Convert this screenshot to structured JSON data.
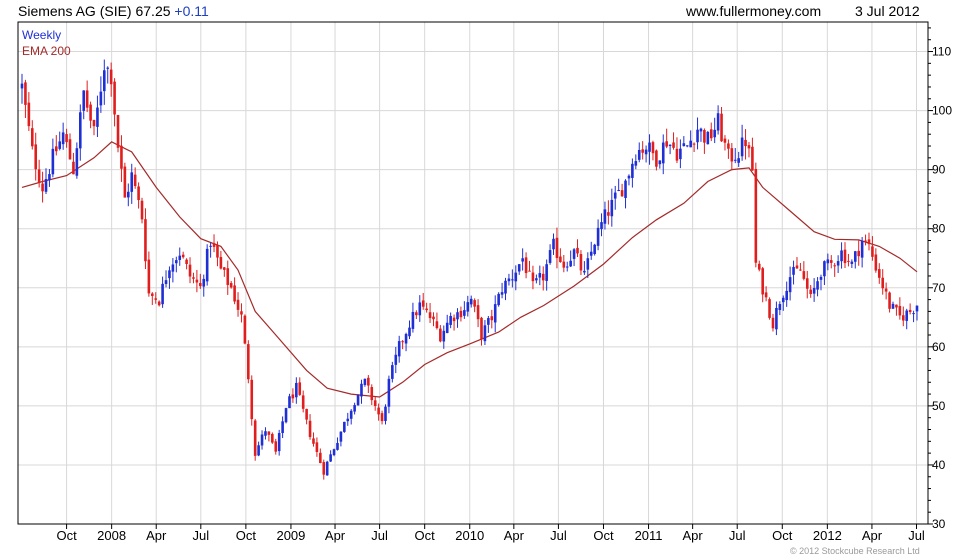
{
  "header": {
    "security": "Siemens AG (SIE)",
    "price": "67.25",
    "change": "+0.11",
    "website": "www.fullermoney.com",
    "date": "3 Jul 2012"
  },
  "legend": {
    "period": "Weekly",
    "average": "EMA 200"
  },
  "copyright": "© 2012 Stockcube Research Ltd",
  "colors": {
    "up": "#1f2fd6",
    "down": "#e01e1e",
    "ema": "#a52a2a",
    "grid": "#d8d8d8",
    "frame": "#000000"
  },
  "chart_data": {
    "type": "candlestick",
    "period": "weekly",
    "ylim": [
      30,
      115
    ],
    "y_ticks": [
      30,
      40,
      50,
      60,
      70,
      80,
      90,
      100,
      110
    ],
    "x_ticks": [
      {
        "label": "Oct",
        "date": "2007-10-01"
      },
      {
        "label": "2008",
        "date": "2008-01-01"
      },
      {
        "label": "Apr",
        "date": "2008-04-01"
      },
      {
        "label": "Jul",
        "date": "2008-07-01"
      },
      {
        "label": "Oct",
        "date": "2008-10-01"
      },
      {
        "label": "2009",
        "date": "2009-01-01"
      },
      {
        "label": "Apr",
        "date": "2009-04-01"
      },
      {
        "label": "Jul",
        "date": "2009-07-01"
      },
      {
        "label": "Oct",
        "date": "2009-10-01"
      },
      {
        "label": "2010",
        "date": "2010-01-01"
      },
      {
        "label": "Apr",
        "date": "2010-04-01"
      },
      {
        "label": "Jul",
        "date": "2010-07-01"
      },
      {
        "label": "Oct",
        "date": "2010-10-01"
      },
      {
        "label": "2011",
        "date": "2011-01-01"
      },
      {
        "label": "Apr",
        "date": "2011-04-01"
      },
      {
        "label": "Jul",
        "date": "2011-07-01"
      },
      {
        "label": "Oct",
        "date": "2011-10-01"
      },
      {
        "label": "2012",
        "date": "2012-01-01"
      },
      {
        "label": "Apr",
        "date": "2012-04-01"
      },
      {
        "label": "Jul",
        "date": "2012-07-01"
      }
    ],
    "price_anchors": [
      [
        "2007-07-02",
        104
      ],
      [
        "2007-07-23",
        93
      ],
      [
        "2007-08-13",
        87
      ],
      [
        "2007-09-03",
        92
      ],
      [
        "2007-09-24",
        96
      ],
      [
        "2007-10-15",
        90
      ],
      [
        "2007-11-05",
        103
      ],
      [
        "2007-11-26",
        96
      ],
      [
        "2007-12-17",
        108
      ],
      [
        "2007-12-31",
        106
      ],
      [
        "2008-01-14",
        94
      ],
      [
        "2008-01-28",
        85
      ],
      [
        "2008-02-11",
        89
      ],
      [
        "2008-03-03",
        82
      ],
      [
        "2008-03-17",
        69
      ],
      [
        "2008-04-07",
        68
      ],
      [
        "2008-04-28",
        74
      ],
      [
        "2008-05-19",
        76
      ],
      [
        "2008-06-09",
        72
      ],
      [
        "2008-06-30",
        70
      ],
      [
        "2008-07-21",
        78
      ],
      [
        "2008-08-11",
        73
      ],
      [
        "2008-09-01",
        70
      ],
      [
        "2008-09-22",
        65
      ],
      [
        "2008-10-06",
        55
      ],
      [
        "2008-10-20",
        42
      ],
      [
        "2008-11-10",
        46
      ],
      [
        "2008-12-01",
        42
      ],
      [
        "2008-12-22",
        50
      ],
      [
        "2009-01-12",
        53
      ],
      [
        "2009-02-02",
        47
      ],
      [
        "2009-02-23",
        42
      ],
      [
        "2009-03-09",
        39
      ],
      [
        "2009-03-30",
        43
      ],
      [
        "2009-04-20",
        47
      ],
      [
        "2009-05-11",
        51
      ],
      [
        "2009-06-01",
        54
      ],
      [
        "2009-06-22",
        50
      ],
      [
        "2009-07-06",
        47
      ],
      [
        "2009-07-20",
        54
      ],
      [
        "2009-08-10",
        60
      ],
      [
        "2009-08-31",
        64
      ],
      [
        "2009-09-21",
        67
      ],
      [
        "2009-10-12",
        65
      ],
      [
        "2009-11-02",
        62
      ],
      [
        "2009-11-23",
        65
      ],
      [
        "2009-12-14",
        66
      ],
      [
        "2010-01-04",
        68
      ],
      [
        "2010-01-25",
        62
      ],
      [
        "2010-02-15",
        65
      ],
      [
        "2010-03-08",
        70
      ],
      [
        "2010-03-29",
        72
      ],
      [
        "2010-04-19",
        75
      ],
      [
        "2010-05-10",
        70
      ],
      [
        "2010-05-31",
        72
      ],
      [
        "2010-06-21",
        77
      ],
      [
        "2010-07-12",
        74
      ],
      [
        "2010-08-02",
        76
      ],
      [
        "2010-08-23",
        72
      ],
      [
        "2010-09-13",
        78
      ],
      [
        "2010-10-04",
        82
      ],
      [
        "2010-10-25",
        85
      ],
      [
        "2010-11-15",
        88
      ],
      [
        "2010-12-06",
        93
      ],
      [
        "2010-12-27",
        94
      ],
      [
        "2011-01-17",
        92
      ],
      [
        "2011-02-07",
        95
      ],
      [
        "2011-02-28",
        93
      ],
      [
        "2011-03-21",
        94
      ],
      [
        "2011-04-11",
        97
      ],
      [
        "2011-05-02",
        95
      ],
      [
        "2011-05-23",
        98
      ],
      [
        "2011-06-13",
        92
      ],
      [
        "2011-07-04",
        93
      ],
      [
        "2011-07-18",
        95
      ],
      [
        "2011-08-01",
        90
      ],
      [
        "2011-08-08",
        74
      ],
      [
        "2011-08-22",
        70
      ],
      [
        "2011-09-12",
        64
      ],
      [
        "2011-09-26",
        68
      ],
      [
        "2011-10-17",
        72
      ],
      [
        "2011-11-07",
        73
      ],
      [
        "2011-11-28",
        68
      ],
      [
        "2011-12-19",
        73
      ],
      [
        "2012-01-09",
        74
      ],
      [
        "2012-01-30",
        76
      ],
      [
        "2012-02-20",
        74
      ],
      [
        "2012-03-12",
        78
      ],
      [
        "2012-03-26",
        77
      ],
      [
        "2012-04-16",
        72
      ],
      [
        "2012-05-07",
        67
      ],
      [
        "2012-05-28",
        65
      ],
      [
        "2012-06-18",
        66
      ],
      [
        "2012-07-02",
        67.25
      ]
    ],
    "ema200": [
      [
        "2007-07-02",
        87
      ],
      [
        "2007-08-13",
        88
      ],
      [
        "2007-10-01",
        89
      ],
      [
        "2007-11-26",
        92
      ],
      [
        "2008-01-01",
        94.7
      ],
      [
        "2008-02-11",
        93
      ],
      [
        "2008-04-01",
        87
      ],
      [
        "2008-05-19",
        82
      ],
      [
        "2008-07-01",
        78.3
      ],
      [
        "2008-08-11",
        77
      ],
      [
        "2008-09-15",
        73
      ],
      [
        "2008-10-20",
        66
      ],
      [
        "2008-12-01",
        62
      ],
      [
        "2009-02-02",
        56
      ],
      [
        "2009-03-16",
        53
      ],
      [
        "2009-05-04",
        52
      ],
      [
        "2009-07-01",
        51.5
      ],
      [
        "2009-08-17",
        54
      ],
      [
        "2009-10-01",
        57
      ],
      [
        "2009-11-16",
        59
      ],
      [
        "2010-01-01",
        60.5
      ],
      [
        "2010-03-01",
        62.5
      ],
      [
        "2010-04-15",
        65
      ],
      [
        "2010-06-01",
        67
      ],
      [
        "2010-08-02",
        70.3
      ],
      [
        "2010-10-01",
        74
      ],
      [
        "2010-11-29",
        78.5
      ],
      [
        "2011-01-17",
        81.5
      ],
      [
        "2011-03-14",
        84.3
      ],
      [
        "2011-05-02",
        88
      ],
      [
        "2011-06-20",
        90
      ],
      [
        "2011-07-25",
        90.3
      ],
      [
        "2011-08-22",
        87
      ],
      [
        "2011-10-17",
        83
      ],
      [
        "2011-12-05",
        79.5
      ],
      [
        "2012-01-16",
        78.2
      ],
      [
        "2012-03-05",
        78.1
      ],
      [
        "2012-04-16",
        77
      ],
      [
        "2012-05-28",
        75
      ],
      [
        "2012-07-02",
        72.7
      ]
    ]
  }
}
